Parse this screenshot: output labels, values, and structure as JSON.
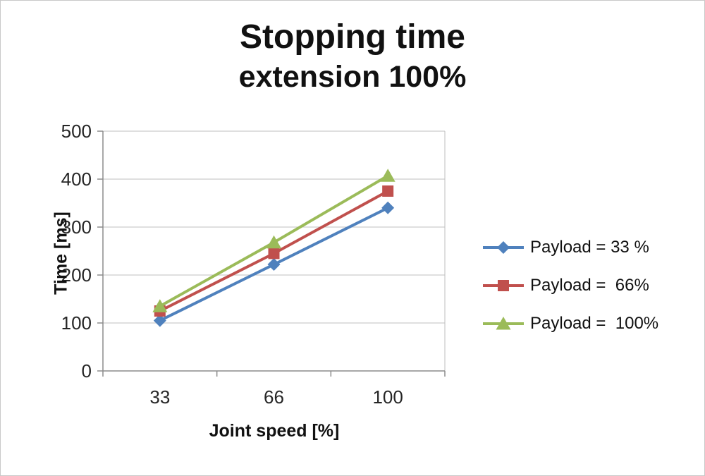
{
  "chart_data": {
    "type": "line",
    "title": "Stopping time",
    "subtitle": "extension 100%",
    "xlabel": "Joint speed [%]",
    "ylabel": "Time [ms]",
    "categories": [
      "33",
      "66",
      "100"
    ],
    "ylim": [
      0,
      500
    ],
    "yticks": [
      0,
      100,
      200,
      300,
      400,
      500
    ],
    "grid": "horizontal",
    "legend_position": "right",
    "series": [
      {
        "name": "Payload = 33 %",
        "color": "#4F81BD",
        "marker": "diamond",
        "values": [
          105,
          222,
          340
        ]
      },
      {
        "name": "Payload =  66%",
        "color": "#C0504D",
        "marker": "square",
        "values": [
          125,
          245,
          375
        ]
      },
      {
        "name": "Payload =  100%",
        "color": "#9BBB59",
        "marker": "triangle",
        "values": [
          135,
          268,
          407
        ]
      }
    ],
    "colors": {
      "gridline": "#bfbfbf",
      "axis": "#8c8c8c",
      "tick_text": "#262626"
    }
  }
}
